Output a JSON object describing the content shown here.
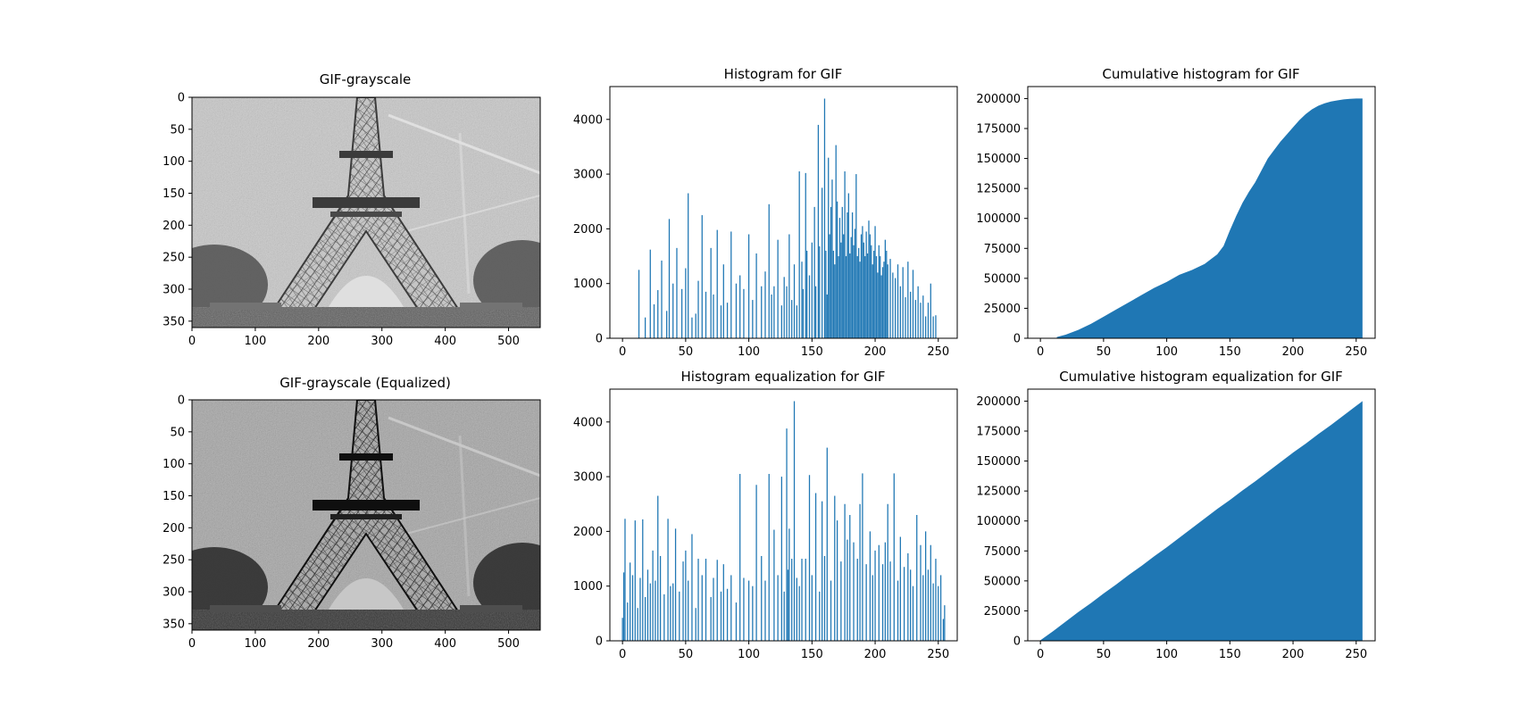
{
  "figure": {
    "bar_color": "#1f77b4",
    "background": "#ffffff"
  },
  "chart_data": [
    {
      "type": "image",
      "title": "GIF-grayscale",
      "image_description": "grayscale photograph, low contrast",
      "xlim": [
        0,
        550
      ],
      "ylim": [
        360,
        0
      ],
      "xticks": [
        0,
        100,
        200,
        300,
        400,
        500
      ],
      "yticks": [
        0,
        50,
        100,
        150,
        200,
        250,
        300,
        350
      ]
    },
    {
      "type": "bar",
      "title": "Histogram for GIF",
      "xlim": [
        -10,
        265
      ],
      "ylim": [
        0,
        4600
      ],
      "xticks": [
        0,
        50,
        100,
        150,
        200,
        250
      ],
      "yticks": [
        0,
        1000,
        2000,
        3000,
        4000
      ],
      "x": [
        13,
        18,
        22,
        25,
        28,
        31,
        35,
        37,
        40,
        43,
        47,
        50,
        52,
        55,
        58,
        60,
        63,
        66,
        70,
        72,
        75,
        78,
        80,
        83,
        86,
        90,
        93,
        96,
        100,
        103,
        106,
        110,
        113,
        116,
        118,
        120,
        123,
        126,
        128,
        130,
        132,
        134,
        136,
        138,
        140,
        142,
        143,
        145,
        146,
        148,
        150,
        152,
        153,
        155,
        156,
        158,
        160,
        161,
        162,
        163,
        164,
        165,
        166,
        167,
        168,
        169,
        170,
        171,
        172,
        173,
        174,
        175,
        176,
        177,
        178,
        179,
        180,
        181,
        182,
        183,
        184,
        185,
        186,
        187,
        188,
        189,
        190,
        191,
        192,
        193,
        194,
        195,
        196,
        197,
        198,
        199,
        200,
        201,
        202,
        203,
        204,
        205,
        206,
        207,
        208,
        209,
        210,
        212,
        214,
        216,
        218,
        220,
        222,
        224,
        226,
        228,
        230,
        232,
        234,
        236,
        238,
        240,
        242,
        244,
        246,
        248
      ],
      "values": [
        1250,
        380,
        1620,
        620,
        880,
        1420,
        500,
        2180,
        1000,
        1650,
        900,
        1280,
        2650,
        380,
        450,
        1050,
        2250,
        850,
        1650,
        800,
        1980,
        600,
        1350,
        650,
        1950,
        1000,
        1150,
        900,
        1900,
        700,
        1550,
        950,
        1220,
        2450,
        800,
        950,
        1800,
        600,
        1120,
        950,
        1900,
        700,
        1350,
        600,
        3050,
        1400,
        900,
        3020,
        1600,
        1150,
        1750,
        2400,
        950,
        3900,
        1680,
        2750,
        4380,
        1600,
        800,
        3300,
        1900,
        2400,
        2900,
        1600,
        1350,
        3530,
        2500,
        1500,
        2200,
        1750,
        2400,
        1900,
        3050,
        1500,
        2300,
        2650,
        1550,
        1850,
        2300,
        1700,
        2000,
        3000,
        1500,
        1650,
        1400,
        1900,
        2050,
        1750,
        1500,
        1950,
        1550,
        2150,
        1900,
        1700,
        1350,
        1600,
        2050,
        1500,
        1200,
        1700,
        1500,
        1150,
        1300,
        1400,
        1800,
        1600,
        1350,
        1450,
        1200,
        1100,
        1350,
        950,
        1300,
        750,
        1400,
        850,
        1250,
        700,
        950,
        650,
        780,
        400,
        650,
        1000,
        400,
        420
      ]
    },
    {
      "type": "area",
      "title": "Cumulative histogram for GIF",
      "xlim": [
        -10,
        265
      ],
      "ylim": [
        0,
        210000
      ],
      "xticks": [
        0,
        50,
        100,
        150,
        200,
        250
      ],
      "yticks": [
        0,
        25000,
        50000,
        75000,
        100000,
        125000,
        150000,
        175000,
        200000
      ],
      "x": [
        13,
        20,
        30,
        40,
        50,
        60,
        70,
        80,
        90,
        100,
        110,
        120,
        130,
        140,
        145,
        150,
        155,
        160,
        165,
        170,
        175,
        180,
        185,
        190,
        195,
        200,
        205,
        210,
        215,
        220,
        225,
        230,
        235,
        240,
        245,
        250,
        255
      ],
      "values": [
        1000,
        3000,
        7000,
        12000,
        18000,
        24000,
        30000,
        36000,
        42000,
        47000,
        53000,
        57000,
        62000,
        70000,
        77000,
        90000,
        102000,
        113000,
        122000,
        130000,
        140000,
        150000,
        157000,
        164000,
        170000,
        176000,
        182000,
        187000,
        191000,
        194000,
        196000,
        197500,
        198500,
        199300,
        199800,
        200000,
        200000
      ]
    },
    {
      "type": "image",
      "title": "GIF-grayscale (Equalized)",
      "image_description": "grayscale photograph, equalized contrast",
      "xlim": [
        0,
        550
      ],
      "ylim": [
        360,
        0
      ],
      "xticks": [
        0,
        100,
        200,
        300,
        400,
        500
      ],
      "yticks": [
        0,
        50,
        100,
        150,
        200,
        250,
        300,
        350
      ]
    },
    {
      "type": "bar",
      "title": "Histogram equalization for GIF",
      "xlim": [
        -10,
        265
      ],
      "ylim": [
        0,
        4600
      ],
      "xticks": [
        0,
        50,
        100,
        150,
        200,
        250
      ],
      "yticks": [
        0,
        1000,
        2000,
        3000,
        4000
      ],
      "x": [
        0,
        1,
        2,
        4,
        6,
        8,
        10,
        12,
        14,
        16,
        18,
        20,
        22,
        24,
        26,
        28,
        30,
        33,
        36,
        38,
        40,
        42,
        45,
        48,
        50,
        52,
        55,
        58,
        60,
        63,
        66,
        70,
        72,
        75,
        78,
        80,
        83,
        86,
        90,
        93,
        96,
        100,
        103,
        106,
        110,
        113,
        116,
        120,
        123,
        126,
        128,
        130,
        131,
        132,
        134,
        136,
        138,
        140,
        142,
        145,
        148,
        150,
        153,
        156,
        158,
        160,
        162,
        165,
        168,
        170,
        173,
        176,
        178,
        180,
        183,
        186,
        188,
        190,
        193,
        196,
        198,
        200,
        203,
        206,
        208,
        210,
        212,
        215,
        218,
        220,
        223,
        226,
        228,
        230,
        233,
        236,
        238,
        240,
        242,
        244,
        246,
        248,
        250,
        252,
        254,
        255
      ],
      "values": [
        420,
        1250,
        2230,
        700,
        1430,
        1200,
        2200,
        600,
        1150,
        2220,
        800,
        1300,
        1050,
        1650,
        1100,
        2650,
        1550,
        850,
        2230,
        1000,
        1050,
        2050,
        900,
        1450,
        1650,
        1100,
        1950,
        600,
        1500,
        1200,
        1500,
        800,
        1150,
        1480,
        900,
        1400,
        950,
        1200,
        700,
        3050,
        1150,
        1100,
        1000,
        2850,
        1550,
        1100,
        3050,
        2030,
        1200,
        3000,
        900,
        3880,
        1300,
        2050,
        1500,
        4380,
        1150,
        1000,
        1500,
        1500,
        3030,
        1200,
        2700,
        900,
        2550,
        1550,
        3530,
        1100,
        2650,
        2200,
        1450,
        2500,
        1850,
        2300,
        1800,
        1500,
        2500,
        3060,
        1400,
        2000,
        1200,
        1650,
        1750,
        1400,
        1800,
        2500,
        1450,
        3060,
        1100,
        1900,
        1350,
        1600,
        1300,
        1000,
        2300,
        1750,
        1200,
        2000,
        1300,
        1750,
        1050,
        1500,
        1000,
        1200,
        400,
        650
      ]
    },
    {
      "type": "area",
      "title": "Cumulative histogram equalization for GIF",
      "xlim": [
        -10,
        265
      ],
      "ylim": [
        0,
        210000
      ],
      "xticks": [
        0,
        50,
        100,
        150,
        200,
        250
      ],
      "yticks": [
        0,
        25000,
        50000,
        75000,
        100000,
        125000,
        150000,
        175000,
        200000
      ],
      "x": [
        0,
        10,
        20,
        30,
        40,
        50,
        60,
        70,
        80,
        90,
        100,
        110,
        120,
        130,
        140,
        150,
        160,
        170,
        180,
        190,
        200,
        210,
        220,
        230,
        240,
        250,
        255
      ],
      "values": [
        500,
        8000,
        16000,
        24000,
        31500,
        39500,
        47000,
        55000,
        62500,
        70500,
        78000,
        86000,
        94000,
        102000,
        110000,
        117500,
        125500,
        133000,
        141000,
        149000,
        157000,
        164500,
        172500,
        180000,
        188000,
        196000,
        200000
      ]
    }
  ]
}
